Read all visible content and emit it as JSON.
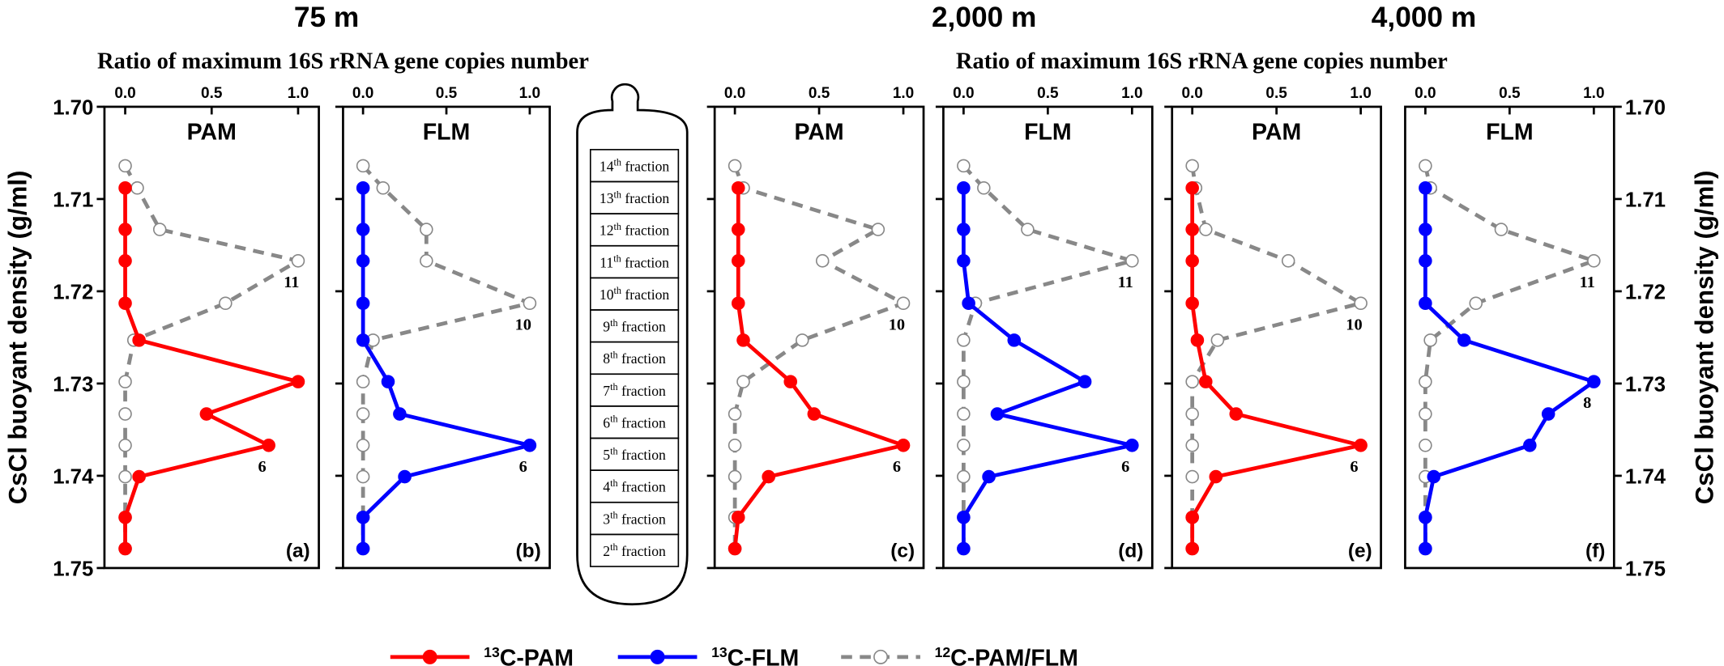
{
  "depths": [
    "75 m",
    "2,000 m",
    "4,000 m"
  ],
  "x_axis_titles": [
    "Ratio of maximum 16S rRNA gene copies number",
    "Ratio of maximum 16S rRNA gene copies number"
  ],
  "y_axis_title": "CsCl buoyant density (g/ml)",
  "tube_fractions": [
    {
      "n": "14",
      "sup": "th",
      "text": " fraction"
    },
    {
      "n": "13",
      "sup": "th",
      "text": " fraction"
    },
    {
      "n": "12",
      "sup": "th",
      "text": " fraction"
    },
    {
      "n": "11",
      "sup": "th",
      "text": " fraction"
    },
    {
      "n": "10",
      "sup": "th",
      "text": " fraction"
    },
    {
      "n": "9",
      "sup": "th",
      "text": " fraction"
    },
    {
      "n": "8",
      "sup": "th",
      "text": " fraction"
    },
    {
      "n": "7",
      "sup": "th",
      "text": " fraction"
    },
    {
      "n": "6",
      "sup": "th",
      "text": " fraction"
    },
    {
      "n": "5",
      "sup": "th",
      "text": " fraction"
    },
    {
      "n": "4",
      "sup": "th",
      "text": " fraction"
    },
    {
      "n": "3",
      "sup": "th",
      "text": " fraction"
    },
    {
      "n": "2",
      "sup": "th",
      "text": " fraction"
    }
  ],
  "legend": [
    {
      "sup": "13",
      "name": "C-PAM",
      "color": "#ff0000",
      "dashed": false,
      "filled": true
    },
    {
      "sup": "13",
      "name": "C-FLM",
      "color": "#0000ff",
      "dashed": false,
      "filled": true
    },
    {
      "sup": "12",
      "name": "C-PAM/FLM",
      "color": "#888888",
      "dashed": true,
      "filled": false
    }
  ],
  "chart_data": [
    {
      "type": "line",
      "title": "PAM",
      "label": "(a)",
      "ytick_side": "left",
      "ytick_labels": true,
      "xlim": [
        -0.12,
        1.12
      ],
      "xticks": [
        {
          "value": 0,
          "label": "0.0"
        },
        {
          "value": 0.5,
          "label": "0.5"
        },
        {
          "value": 1,
          "label": "1.0"
        }
      ],
      "ylim": [
        1.7,
        1.75
      ],
      "yreverse": true,
      "yticks": [
        {
          "value": 1.7,
          "label": "1.70"
        },
        1.71,
        1.72,
        1.73,
        1.74,
        1.75
      ],
      "series": [
        {
          "color": "#888888",
          "dashed": true,
          "filled": false,
          "y": [
            1.7064,
            1.7088,
            1.7133,
            1.7167,
            1.7213,
            1.7253,
            1.7298,
            1.7333,
            1.7367,
            1.7401,
            1.7445,
            1.7479
          ],
          "x": [
            0,
            0.07,
            0.2,
            1.0,
            0.58,
            0.05,
            0,
            0,
            0,
            0,
            0,
            0
          ]
        },
        {
          "color": "#ff0000",
          "dashed": false,
          "filled": true,
          "y": [
            1.7088,
            1.7133,
            1.7167,
            1.7213,
            1.7253,
            1.7298,
            1.7333,
            1.7367,
            1.7401,
            1.7445,
            1.7479
          ],
          "x": [
            0,
            0,
            0,
            0,
            0.08,
            1.0,
            0.47,
            0.83,
            0.08,
            0,
            0
          ]
        }
      ],
      "annotations": [
        {
          "text": "11",
          "x": 1.0,
          "y": 1.7167
        },
        {
          "text": "6",
          "x": 0.83,
          "y": 1.7367
        }
      ]
    },
    {
      "type": "line",
      "title": "FLM",
      "label": "(b)",
      "ytick_side": "left",
      "ytick_labels": false,
      "xlim": [
        -0.12,
        1.12
      ],
      "xticks": [
        {
          "value": 0,
          "label": "0.0"
        },
        {
          "value": 0.5,
          "label": "0.5"
        },
        {
          "value": 1,
          "label": "1.0"
        }
      ],
      "ylim": [
        1.7,
        1.75
      ],
      "yreverse": true,
      "yticks": [
        {
          "value": 1.7,
          "label": "1.70"
        },
        1.71,
        1.72,
        1.73,
        1.74,
        1.75
      ],
      "series": [
        {
          "color": "#888888",
          "dashed": true,
          "filled": false,
          "y": [
            1.7064,
            1.7088,
            1.7133,
            1.7167,
            1.7213,
            1.7253,
            1.7298,
            1.7333,
            1.7367,
            1.7401,
            1.7445,
            1.7479
          ],
          "x": [
            0,
            0.12,
            0.38,
            0.38,
            1.0,
            0.06,
            0,
            0,
            0,
            0,
            0,
            0
          ]
        },
        {
          "color": "#0000ff",
          "dashed": false,
          "filled": true,
          "y": [
            1.7088,
            1.7133,
            1.7167,
            1.7213,
            1.7253,
            1.7298,
            1.7333,
            1.7367,
            1.7401,
            1.7445,
            1.7479
          ],
          "x": [
            0,
            0,
            0,
            0,
            0,
            0.15,
            0.22,
            1.0,
            0.25,
            0,
            0
          ]
        }
      ],
      "annotations": [
        {
          "text": "10",
          "x": 1.0,
          "y": 1.7213
        },
        {
          "text": "6",
          "x": 1.0,
          "y": 1.7367
        }
      ]
    },
    {
      "type": "line",
      "title": "PAM",
      "label": "(c)",
      "ytick_side": "left",
      "ytick_labels": false,
      "xlim": [
        -0.12,
        1.12
      ],
      "xticks": [
        {
          "value": 0,
          "label": "0.0"
        },
        {
          "value": 0.5,
          "label": "0.5"
        },
        {
          "value": 1,
          "label": "1.0"
        }
      ],
      "ylim": [
        1.7,
        1.75
      ],
      "yreverse": true,
      "yticks": [
        {
          "value": 1.7,
          "label": "1.70"
        },
        1.71,
        1.72,
        1.73,
        1.74,
        1.75
      ],
      "series": [
        {
          "color": "#888888",
          "dashed": true,
          "filled": false,
          "y": [
            1.7064,
            1.7088,
            1.7133,
            1.7167,
            1.7213,
            1.7253,
            1.7298,
            1.7333,
            1.7367,
            1.7401,
            1.7445,
            1.7479
          ],
          "x": [
            0,
            0.05,
            0.85,
            0.52,
            1.0,
            0.4,
            0.05,
            0,
            0,
            0,
            0,
            0
          ]
        },
        {
          "color": "#ff0000",
          "dashed": false,
          "filled": true,
          "y": [
            1.7088,
            1.7133,
            1.7167,
            1.7213,
            1.7253,
            1.7298,
            1.7333,
            1.7367,
            1.7401,
            1.7445,
            1.7479
          ],
          "x": [
            0.02,
            0.02,
            0.02,
            0.02,
            0.05,
            0.33,
            0.47,
            1.0,
            0.2,
            0.02,
            0
          ]
        }
      ],
      "annotations": [
        {
          "text": "10",
          "x": 1.0,
          "y": 1.7213
        },
        {
          "text": "6",
          "x": 1.0,
          "y": 1.7367
        }
      ]
    },
    {
      "type": "line",
      "title": "FLM",
      "label": "(d)",
      "ytick_side": "left",
      "ytick_labels": false,
      "xlim": [
        -0.12,
        1.12
      ],
      "xticks": [
        {
          "value": 0,
          "label": "0.0"
        },
        {
          "value": 0.5,
          "label": "0.5"
        },
        {
          "value": 1,
          "label": "1.0"
        }
      ],
      "ylim": [
        1.7,
        1.75
      ],
      "yreverse": true,
      "yticks": [
        {
          "value": 1.7,
          "label": "1.70"
        },
        1.71,
        1.72,
        1.73,
        1.74,
        1.75
      ],
      "series": [
        {
          "color": "#888888",
          "dashed": true,
          "filled": false,
          "y": [
            1.7064,
            1.7088,
            1.7133,
            1.7167,
            1.7213,
            1.7253,
            1.7298,
            1.7333,
            1.7367,
            1.7401,
            1.7445,
            1.7479
          ],
          "x": [
            0,
            0.12,
            0.38,
            1.0,
            0.07,
            0,
            0,
            0,
            0,
            0,
            0,
            0
          ]
        },
        {
          "color": "#0000ff",
          "dashed": false,
          "filled": true,
          "y": [
            1.7088,
            1.7133,
            1.7167,
            1.7213,
            1.7253,
            1.7298,
            1.7333,
            1.7367,
            1.7401,
            1.7445,
            1.7479
          ],
          "x": [
            0,
            0,
            0,
            0.03,
            0.3,
            0.72,
            0.2,
            1.0,
            0.15,
            0,
            0
          ]
        }
      ],
      "annotations": [
        {
          "text": "11",
          "x": 1.0,
          "y": 1.7167
        },
        {
          "text": "6",
          "x": 1.0,
          "y": 1.7367
        }
      ]
    },
    {
      "type": "line",
      "title": "PAM",
      "label": "(e)",
      "ytick_side": "left",
      "ytick_labels": false,
      "xlim": [
        -0.12,
        1.12
      ],
      "xticks": [
        {
          "value": 0,
          "label": "0.0"
        },
        {
          "value": 0.5,
          "label": "0.5"
        },
        {
          "value": 1,
          "label": "1.0"
        }
      ],
      "ylim": [
        1.7,
        1.75
      ],
      "yreverse": true,
      "yticks": [
        {
          "value": 1.7,
          "label": "1.70"
        },
        1.71,
        1.72,
        1.73,
        1.74,
        1.75
      ],
      "series": [
        {
          "color": "#888888",
          "dashed": true,
          "filled": false,
          "y": [
            1.7064,
            1.7088,
            1.7133,
            1.7167,
            1.7213,
            1.7253,
            1.7298,
            1.7333,
            1.7367,
            1.7401,
            1.7445,
            1.7479
          ],
          "x": [
            0,
            0.02,
            0.08,
            0.57,
            1.0,
            0.15,
            0,
            0,
            0,
            0,
            0,
            0
          ]
        },
        {
          "color": "#ff0000",
          "dashed": false,
          "filled": true,
          "y": [
            1.7088,
            1.7133,
            1.7167,
            1.7213,
            1.7253,
            1.7298,
            1.7333,
            1.7367,
            1.7401,
            1.7445,
            1.7479
          ],
          "x": [
            0,
            0,
            0,
            0,
            0.03,
            0.08,
            0.26,
            1.0,
            0.14,
            0,
            0
          ]
        }
      ],
      "annotations": [
        {
          "text": "10",
          "x": 1.0,
          "y": 1.7213
        },
        {
          "text": "6",
          "x": 1.0,
          "y": 1.7367
        }
      ]
    },
    {
      "type": "line",
      "title": "FLM",
      "label": "(f)",
      "ytick_side": "right",
      "ytick_labels": true,
      "xlim": [
        -0.12,
        1.12
      ],
      "xticks": [
        {
          "value": 0,
          "label": "0.0"
        },
        {
          "value": 0.5,
          "label": "0.5"
        },
        {
          "value": 1,
          "label": "1.0"
        }
      ],
      "ylim": [
        1.7,
        1.75
      ],
      "yreverse": true,
      "yticks": [
        {
          "value": 1.7,
          "label": "1.70"
        },
        1.71,
        1.72,
        1.73,
        1.74,
        1.75
      ],
      "series": [
        {
          "color": "#888888",
          "dashed": true,
          "filled": false,
          "y": [
            1.7064,
            1.7088,
            1.7133,
            1.7167,
            1.7213,
            1.7253,
            1.7298,
            1.7333,
            1.7367,
            1.7401,
            1.7445,
            1.7479
          ],
          "x": [
            0,
            0.03,
            0.45,
            1.0,
            0.3,
            0.03,
            0,
            0,
            0,
            0,
            0,
            0
          ]
        },
        {
          "color": "#0000ff",
          "dashed": false,
          "filled": true,
          "y": [
            1.7088,
            1.7133,
            1.7167,
            1.7213,
            1.7253,
            1.7298,
            1.7333,
            1.7367,
            1.7401,
            1.7445,
            1.7479
          ],
          "x": [
            0,
            0,
            0,
            0,
            0.23,
            1.0,
            0.73,
            0.62,
            0.05,
            0,
            0
          ]
        }
      ],
      "annotations": [
        {
          "text": "11",
          "x": 1.0,
          "y": 1.7167
        },
        {
          "text": "8",
          "x": 1.0,
          "y": 1.7298
        }
      ]
    }
  ]
}
